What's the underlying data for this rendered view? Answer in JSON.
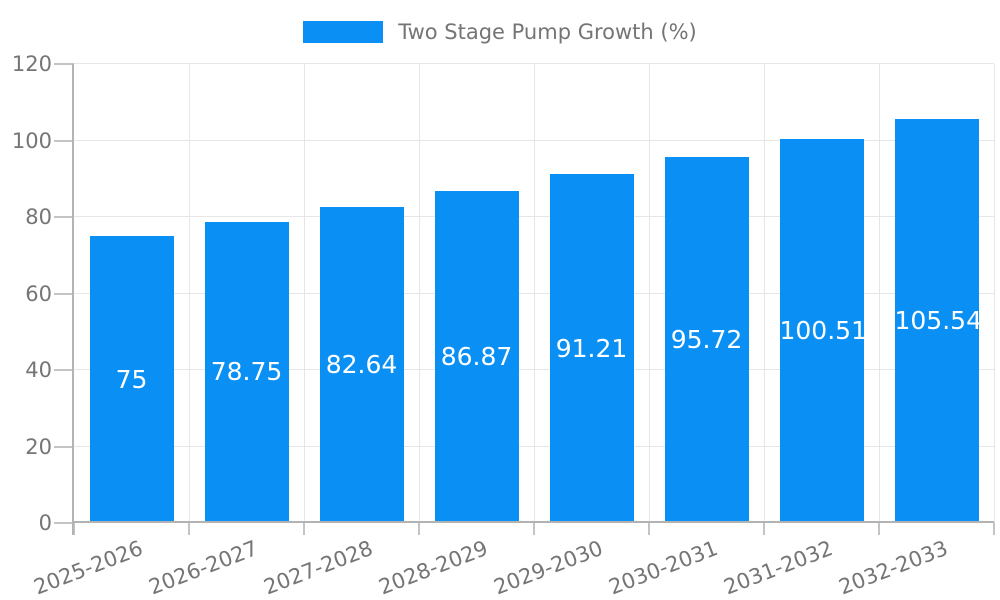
{
  "chart_data": {
    "type": "bar",
    "title": "",
    "series_name": "Two Stage Pump Growth (%)",
    "categories": [
      "2025-2026",
      "2026-2027",
      "2027-2028",
      "2028-2029",
      "2029-2030",
      "2030-2031",
      "2031-2032",
      "2032-2033"
    ],
    "values": [
      75,
      78.75,
      82.64,
      86.87,
      91.21,
      95.72,
      100.51,
      105.54
    ],
    "value_labels": [
      "75",
      "78.75",
      "82.64",
      "86.87",
      "91.21",
      "95.72",
      "100.51",
      "105.54"
    ],
    "xlabel": "",
    "ylabel": "",
    "ylim": [
      0,
      120
    ],
    "ytick_step": 20,
    "ytick_labels": [
      "0",
      "20",
      "40",
      "60",
      "80",
      "100",
      "120"
    ],
    "grid": true,
    "legend_position": "top"
  },
  "colors": {
    "bar": "#0a90f5",
    "grid": "#e6e6e6",
    "axis": "#b3b3b3",
    "tick": "#c4c4c4",
    "text": "#757575",
    "value_label": "#ffffff",
    "background": "#ffffff"
  }
}
